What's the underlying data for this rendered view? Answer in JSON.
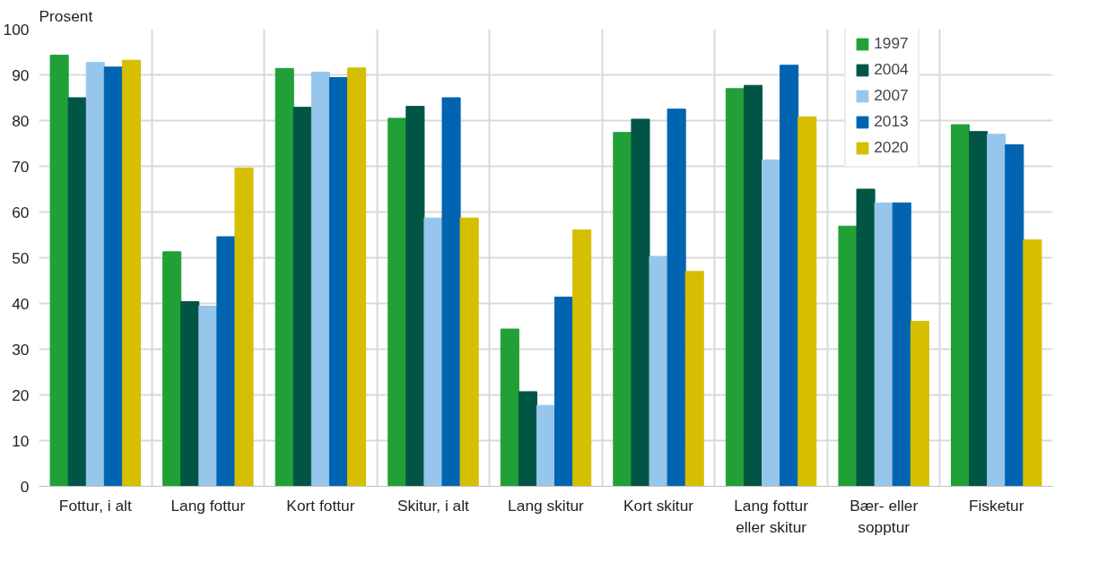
{
  "chart_data": {
    "type": "bar",
    "ylabel": "Prosent",
    "categories": [
      "Fottur, i alt",
      "Lang fottur",
      "Kort fottur",
      "Skitur, i alt",
      "Lang skitur",
      "Kort skitur",
      "Lang fottur eller skitur",
      "Bær- eller sopptur",
      "Fisketur"
    ],
    "series": [
      {
        "name": "1997",
        "color": "#21a038",
        "values": [
          94.3,
          51.3,
          91.4,
          80.5,
          34.4,
          77.4,
          87.0,
          56.9,
          79.1
        ]
      },
      {
        "name": "2004",
        "color": "#005545",
        "values": [
          85.0,
          40.4,
          82.9,
          83.1,
          20.7,
          80.3,
          87.7,
          65.0,
          77.6
        ]
      },
      {
        "name": "2007",
        "color": "#96c6eb",
        "values": [
          92.7,
          39.4,
          90.6,
          58.7,
          17.7,
          50.3,
          71.4,
          62.0,
          77.0
        ]
      },
      {
        "name": "2013",
        "color": "#0064b0",
        "values": [
          91.7,
          54.6,
          89.4,
          85.0,
          41.4,
          82.5,
          92.1,
          62.0,
          74.7
        ]
      },
      {
        "name": "2020",
        "color": "#d6be00",
        "values": [
          93.2,
          69.6,
          91.5,
          58.7,
          56.1,
          47.0,
          80.8,
          36.1,
          53.9
        ]
      }
    ],
    "ylim": [
      0,
      100
    ],
    "yticks": [
      0,
      10,
      20,
      30,
      40,
      50,
      60,
      70,
      80,
      90,
      100
    ],
    "grid": true,
    "legend": "top right"
  }
}
